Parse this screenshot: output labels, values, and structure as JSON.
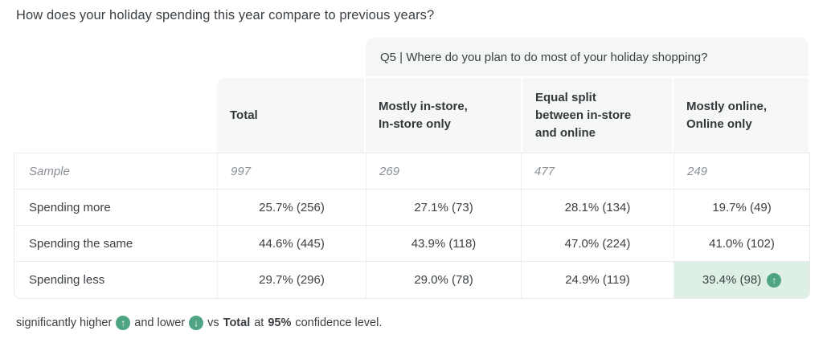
{
  "title": "How does your holiday spending this year compare to previous years?",
  "banner": {
    "text": "Q5 | Where do you plan to do most of your holiday shopping?"
  },
  "columns": [
    {
      "id": "total",
      "lines": [
        "Total"
      ]
    },
    {
      "id": "mostly-in-store",
      "lines": [
        "Mostly in-store,",
        "In-store only"
      ]
    },
    {
      "id": "equal-split",
      "lines": [
        "Equal split",
        "between in-store",
        "and online"
      ]
    },
    {
      "id": "mostly-online",
      "lines": [
        "Mostly online,",
        "Online only"
      ]
    }
  ],
  "rows": {
    "sample": {
      "label": "Sample",
      "values": [
        "997",
        "269",
        "477",
        "249"
      ]
    },
    "spending_more": {
      "label": "Spending more",
      "values": [
        "25.7% (256)",
        "27.1% (73)",
        "28.1% (134)",
        "19.7% (49)"
      ]
    },
    "spending_same": {
      "label": "Spending the same",
      "values": [
        "44.6% (445)",
        "43.9% (118)",
        "47.0% (224)",
        "41.0% (102)"
      ]
    },
    "spending_less": {
      "label": "Spending less",
      "values": [
        "29.7% (296)",
        "29.0% (78)",
        "24.9% (119)",
        "39.4% (98)"
      ],
      "significance": "higher-vs-total-in-mostly-online"
    }
  },
  "icons": {
    "up_arrow": "↑",
    "down_arrow": "↓"
  },
  "footnote": {
    "part1": "significantly higher",
    "part2": "and lower",
    "part3": "vs",
    "total_bold": "Total",
    "part4": "at",
    "confidence_bold": "95%",
    "part5": "confidence level."
  },
  "colors": {
    "significance_green": "#4ea483",
    "highlight_cell_bg": "#def0e4",
    "header_bg": "#f6f7f7",
    "border": "#e8eaec",
    "text_dark": "#3c4145",
    "text_muted_italic": "#8a9096"
  },
  "chart_data": {
    "type": "table",
    "title": "How does your holiday spending this year compare to previous years?",
    "crosstab_question": "Q5 | Where do you plan to do most of your holiday shopping?",
    "columns": [
      "Total",
      "Mostly in-store, In-store only",
      "Equal split between in-store and online",
      "Mostly online, Online only"
    ],
    "sample_sizes": [
      997,
      269,
      477,
      249
    ],
    "series": [
      {
        "name": "Spending more",
        "pct": [
          25.7,
          27.1,
          28.1,
          19.7
        ],
        "counts": [
          256,
          73,
          134,
          49
        ]
      },
      {
        "name": "Spending the same",
        "pct": [
          44.6,
          43.9,
          47.0,
          41.0
        ],
        "counts": [
          445,
          118,
          224,
          102
        ]
      },
      {
        "name": "Spending less",
        "pct": [
          29.7,
          29.0,
          24.9,
          39.4
        ],
        "counts": [
          296,
          78,
          119,
          98
        ]
      }
    ],
    "significance_notes": "Spending less × Mostly online/Online only (39.4%) significantly higher vs Total at 95% confidence level"
  }
}
